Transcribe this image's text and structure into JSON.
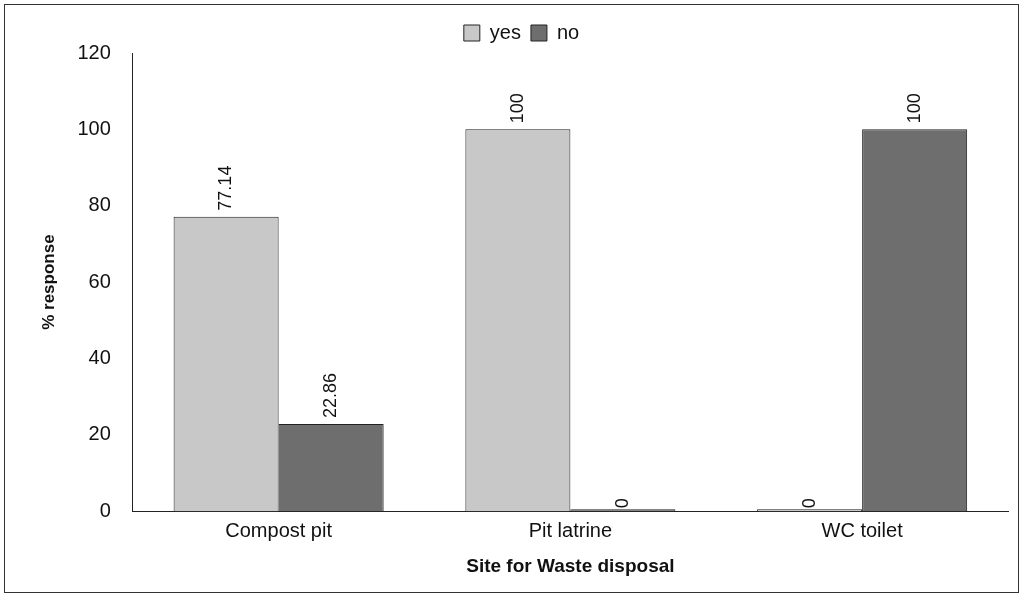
{
  "chart_data": {
    "type": "bar",
    "xlabel": "Site for Waste disposal",
    "ylabel": "% response",
    "categories": [
      "Compost pit",
      "Pit latrine",
      "WC toilet"
    ],
    "series": [
      {
        "name": "yes",
        "color": "#c8c8c8",
        "values": [
          77.14,
          100,
          0
        ]
      },
      {
        "name": "no",
        "color": "#6e6e6e",
        "values": [
          22.86,
          0,
          100
        ]
      }
    ],
    "ylim": [
      0,
      120
    ],
    "yticks": [
      0,
      20,
      40,
      60,
      80,
      100,
      120
    ],
    "grid": false,
    "legend": "top",
    "data_labels": true
  }
}
